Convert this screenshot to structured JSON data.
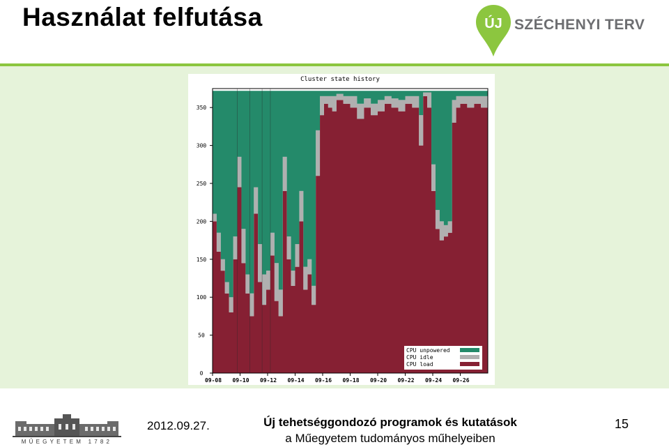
{
  "slide": {
    "title": "Használat felfutása",
    "brand_logo_letters": "ÚJ",
    "brand_logo_text": "SZÉCHENYI TERV",
    "footer_logo_text": "MŰEGYETEM 1782",
    "date": "2012.09.27.",
    "program_line1": "Új tehetséggondozó programok és kutatások",
    "program_line2": "a Műegyetem tudományos műhelyeiben",
    "page_number": "15"
  },
  "colors": {
    "accent_green": "#8cc63f",
    "panel_bg": "#e6f3da",
    "unpowered": "#248a6a",
    "idle": "#b0b0b0",
    "load": "#862033"
  },
  "chart_data": {
    "type": "area",
    "title": "Cluster state history",
    "stacked": true,
    "xlabel": "",
    "ylabel": "",
    "ylim": [
      0,
      375
    ],
    "xlim": [
      0,
      20
    ],
    "y_ticks": [
      0,
      50,
      100,
      150,
      200,
      250,
      300,
      350
    ],
    "x_tick_labels": [
      "09-08",
      "09-10",
      "09-12",
      "09-14",
      "09-16",
      "09-18",
      "09-20",
      "09-22",
      "09-24",
      "09-26"
    ],
    "legend_position": "bottom-right",
    "total_capacity": 372,
    "series_names": [
      "CPU unpowered",
      "CPU idle",
      "CPU load"
    ],
    "x": [
      0.0,
      0.3,
      0.6,
      0.9,
      1.2,
      1.5,
      1.8,
      2.1,
      2.4,
      2.7,
      3.0,
      3.3,
      3.6,
      3.9,
      4.2,
      4.5,
      4.8,
      5.1,
      5.4,
      5.7,
      6.0,
      6.3,
      6.6,
      6.9,
      7.2,
      7.5,
      7.8,
      8.1,
      8.4,
      8.7,
      9.0,
      9.5,
      10.0,
      10.5,
      11.0,
      11.5,
      12.0,
      12.5,
      13.0,
      13.5,
      14.0,
      14.5,
      15.0,
      15.3,
      15.6,
      15.9,
      16.2,
      16.5,
      16.8,
      17.1,
      17.4,
      17.7,
      18.0,
      18.5,
      19.0,
      19.5,
      20.0
    ],
    "series": [
      {
        "name": "CPU load",
        "values": [
          200,
          160,
          135,
          105,
          80,
          150,
          245,
          145,
          105,
          75,
          210,
          120,
          90,
          110,
          155,
          95,
          75,
          240,
          150,
          115,
          140,
          200,
          110,
          130,
          90,
          260,
          340,
          355,
          350,
          345,
          360,
          355,
          350,
          335,
          350,
          340,
          345,
          355,
          350,
          345,
          355,
          350,
          300,
          365,
          350,
          240,
          190,
          175,
          180,
          185,
          330,
          350,
          355,
          350,
          355,
          350,
          355
        ]
      },
      {
        "name": "CPU idle",
        "values": [
          10,
          25,
          15,
          15,
          20,
          30,
          40,
          45,
          25,
          30,
          35,
          50,
          40,
          25,
          30,
          50,
          35,
          45,
          30,
          20,
          30,
          40,
          30,
          20,
          25,
          60,
          25,
          10,
          15,
          20,
          8,
          10,
          15,
          20,
          12,
          15,
          15,
          10,
          12,
          15,
          10,
          15,
          40,
          5,
          20,
          35,
          25,
          25,
          15,
          15,
          30,
          15,
          10,
          15,
          10,
          15,
          10
        ]
      },
      {
        "name": "CPU unpowered",
        "values": [
          162,
          187,
          222,
          252,
          272,
          192,
          87,
          182,
          242,
          267,
          127,
          202,
          242,
          237,
          187,
          227,
          262,
          87,
          192,
          237,
          202,
          132,
          232,
          222,
          257,
          52,
          7,
          7,
          7,
          7,
          4,
          7,
          7,
          17,
          10,
          17,
          12,
          7,
          10,
          12,
          7,
          7,
          32,
          2,
          2,
          97,
          157,
          172,
          177,
          172,
          12,
          7,
          7,
          7,
          7,
          7,
          7
        ]
      }
    ]
  }
}
